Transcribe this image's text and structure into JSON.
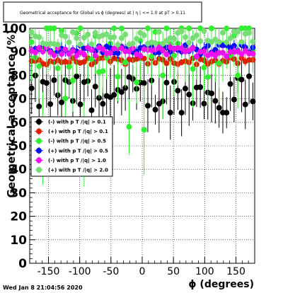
{
  "chart_data": {
    "type": "scatter",
    "title": "Geometrical acceptance for Global vs ϕ (degrees) at | η | <= 1.0 at pT > 0.11",
    "xlabel": "ϕ (degrees)",
    "ylabel": "Geometrical acceptance (%)",
    "xlim": [
      -180,
      180
    ],
    "ylim": [
      0,
      100
    ],
    "x_ticks": [
      -150,
      -100,
      -50,
      0,
      50,
      100,
      150
    ],
    "y_ticks": [
      0,
      10,
      20,
      30,
      40,
      50,
      60,
      70,
      80,
      90,
      100
    ],
    "grid": true,
    "legend_position": "left",
    "timestamp": "Wed Jan  8 21:04:56 2020",
    "series": [
      {
        "name": "(-) with p T /|q| > 0.1",
        "color": "#000000",
        "marker": "circle",
        "mean": 72,
        "spread": 8,
        "err": 14
      },
      {
        "name": "(+) with p T /|q| > 0.1",
        "color": "#dd2200",
        "marker": "circle",
        "mean": 86,
        "spread": 1.5,
        "err": 2
      },
      {
        "name": "(-) with p T /|q| > 0.5",
        "color": "#33ee33",
        "marker": "circle",
        "mean": 94,
        "spread": 15,
        "err": 20
      },
      {
        "name": "(+) with p T /|q| > 0.5",
        "color": "#0011ee",
        "marker": "circle",
        "mean": 91,
        "spread": 2,
        "err": 3
      },
      {
        "name": "(-) with p T /|q| > 1.0",
        "color": "#ee11ee",
        "marker": "circle",
        "mean": 90,
        "spread": 2,
        "err": 3
      },
      {
        "name": "(+) with p T /|q| > 2.0",
        "color": "#77dd77",
        "marker": "circle",
        "mean": 96,
        "spread": 3,
        "err": 4
      }
    ]
  }
}
